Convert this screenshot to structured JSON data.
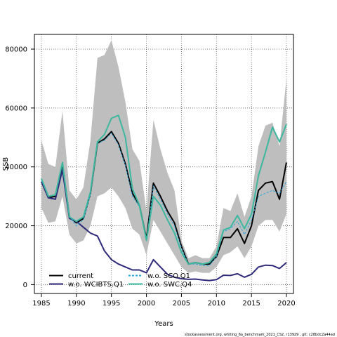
{
  "chart_data": {
    "type": "line",
    "title": "",
    "xlabel": "Years",
    "ylabel": "SSB",
    "xlim": [
      1984,
      2021
    ],
    "ylim": [
      -3000,
      85000
    ],
    "xticks": [
      1985,
      1990,
      1995,
      2000,
      2005,
      2010,
      2015,
      2020
    ],
    "yticks": [
      0,
      20000,
      40000,
      60000,
      80000
    ],
    "grid": true,
    "legend_position": "bottom-left",
    "x": [
      1985,
      1986,
      1987,
      1988,
      1989,
      1990,
      1991,
      1992,
      1993,
      1994,
      1995,
      1996,
      1997,
      1998,
      1999,
      2000,
      2001,
      2002,
      2003,
      2004,
      2005,
      2006,
      2007,
      2008,
      2009,
      2010,
      2011,
      2012,
      2013,
      2014,
      2015,
      2016,
      2017,
      2018,
      2019,
      2020
    ],
    "band": {
      "color": "#bebebe",
      "upper": [
        49000,
        41000,
        40000,
        59000,
        32000,
        29000,
        33000,
        49000,
        77000,
        78000,
        83000,
        74000,
        62000,
        46000,
        42000,
        25000,
        56000,
        46000,
        38000,
        32000,
        15000,
        9000,
        10000,
        9000,
        9000,
        13000,
        26000,
        25000,
        31000,
        23000,
        30000,
        47000,
        54000,
        55000,
        47000,
        70000
      ],
      "lower": [
        26000,
        21000,
        21500,
        30000,
        17000,
        14000,
        15000,
        20000,
        30000,
        31000,
        33000,
        30000,
        26000,
        19000,
        17000,
        10000,
        22000,
        18000,
        14000,
        10000,
        6000,
        4000,
        4500,
        4000,
        4000,
        6000,
        10000,
        11000,
        13000,
        9000,
        13000,
        20000,
        22000,
        22000,
        18000,
        24000
      ]
    },
    "series": [
      {
        "name": "current",
        "color": "#000000",
        "dash": "solid",
        "values": [
          35000,
          29500,
          30000,
          41000,
          23000,
          21000,
          22500,
          31000,
          48000,
          49500,
          52000,
          48000,
          41000,
          31000,
          27000,
          15500,
          34500,
          30000,
          25000,
          21000,
          13000,
          7000,
          7500,
          7000,
          7000,
          9500,
          16000,
          16000,
          19000,
          14000,
          20000,
          32000,
          34500,
          35000,
          29000,
          41500
        ]
      },
      {
        "name": "w.o. WCIBTS.Q1",
        "color": "#2e2a7a",
        "dash": "solid",
        "values": [
          35000,
          29500,
          29000,
          39000,
          22500,
          21500,
          19500,
          17500,
          16500,
          11500,
          8500,
          7000,
          6000,
          5000,
          5000,
          4000,
          8500,
          6000,
          3500,
          2500,
          2000,
          1800,
          1900,
          1600,
          1400,
          1700,
          3200,
          3100,
          3700,
          2500,
          3500,
          6000,
          6600,
          6500,
          5500,
          7500
        ]
      },
      {
        "name": "w.o. SCO.Q1",
        "color": "#29a7e0",
        "dash": "dash",
        "values": [
          35500,
          30000,
          30500,
          41500,
          23000,
          20000,
          22000,
          30500,
          48000,
          49000,
          51500,
          47500,
          40500,
          30000,
          26500,
          15000,
          33500,
          29000,
          24000,
          20000,
          12500,
          7000,
          7000,
          6500,
          6500,
          9500,
          18000,
          19000,
          21500,
          17000,
          22000,
          30000,
          31000,
          32000,
          31000,
          35000
        ]
      },
      {
        "name": "w.o. SWC.Q4",
        "color": "#3cb8a0",
        "dash": "solid",
        "values": [
          36000,
          30000,
          30500,
          41500,
          23000,
          21500,
          23000,
          31500,
          48500,
          51000,
          56500,
          57500,
          50000,
          32500,
          27000,
          15000,
          30000,
          27000,
          22000,
          17500,
          11000,
          7000,
          7500,
          7000,
          7500,
          10500,
          18500,
          19500,
          23500,
          19000,
          24000,
          37000,
          45000,
          53500,
          48500,
          54500
        ]
      }
    ]
  },
  "legend": {
    "items": [
      {
        "name": "current",
        "color": "#000000",
        "dash": "solid"
      },
      {
        "name": "w.o. WCIBTS.Q1",
        "color": "#2e2a7a",
        "dash": "solid"
      },
      {
        "name": "w.o. SCO.Q1",
        "color": "#29a7e0",
        "dash": "dash"
      },
      {
        "name": "w.o. SWC.Q4",
        "color": "#3cb8a0",
        "dash": "solid"
      }
    ]
  },
  "footer": "stockassessment.org,  whiting_6a_benchmark_2021_CS2,  r13929 ,  git: c28bdc2a44ad"
}
